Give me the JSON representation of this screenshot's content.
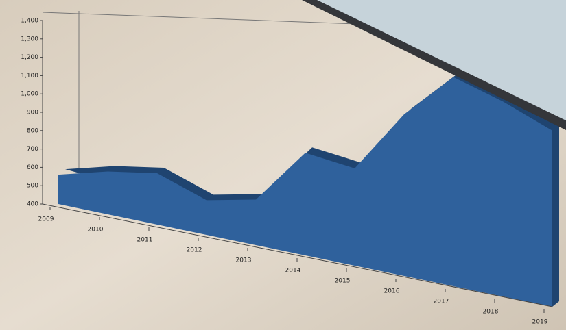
{
  "chart_data": {
    "type": "area",
    "categories": [
      "2009",
      "2010",
      "2011",
      "2012",
      "2013",
      "2014",
      "2015",
      "2016",
      "2017",
      "2018",
      "2019"
    ],
    "values": [
      560,
      620,
      650,
      560,
      600,
      830,
      790,
      1020,
      1170,
      1090,
      1000
    ],
    "color": "#2f619c",
    "ylim": [
      400,
      1400
    ],
    "yticks": [
      400,
      500,
      600,
      700,
      800,
      900,
      {
        "value": 1000,
        "label": "1,000"
      },
      {
        "value": 1100,
        "label": "1,100"
      },
      {
        "value": 1200,
        "label": "1,200"
      },
      {
        "value": 1300,
        "label": "1,300"
      },
      {
        "value": 1400,
        "label": "1,400"
      }
    ]
  }
}
